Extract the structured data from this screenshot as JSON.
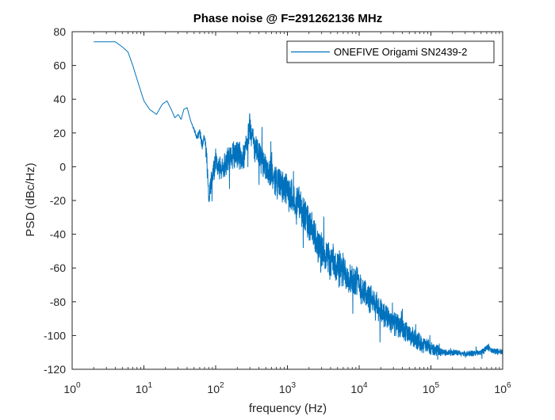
{
  "chart_data": {
    "type": "line",
    "title": "Phase noise @ F=291262136 MHz",
    "xlabel": "frequency (Hz)",
    "ylabel": "PSD (dBc/Hz)",
    "xscale": "log",
    "xlim": [
      1,
      1000000
    ],
    "ylim": [
      -120,
      80
    ],
    "grid": true,
    "minor_grid": true,
    "legend_position": "top-right",
    "x_ticks": [
      {
        "base": "10",
        "exp": "0",
        "value": 1
      },
      {
        "base": "10",
        "exp": "1",
        "value": 10
      },
      {
        "base": "10",
        "exp": "2",
        "value": 100
      },
      {
        "base": "10",
        "exp": "3",
        "value": 1000
      },
      {
        "base": "10",
        "exp": "4",
        "value": 10000
      },
      {
        "base": "10",
        "exp": "5",
        "value": 100000
      },
      {
        "base": "10",
        "exp": "6",
        "value": 1000000
      }
    ],
    "y_ticks": [
      "80",
      "60",
      "40",
      "20",
      "0",
      "-20",
      "-40",
      "-60",
      "-80",
      "-100",
      "-120"
    ],
    "series": [
      {
        "name": "ONEFIVE Origami SN2439-2",
        "color": "#0072BD",
        "envelope": {
          "x": [
            2,
            4,
            5,
            6,
            7,
            8,
            10,
            12,
            15,
            18,
            21,
            24,
            27,
            30,
            33,
            36,
            40,
            45,
            50,
            55,
            60,
            65,
            70,
            75,
            80,
            90,
            100,
            120,
            150,
            200,
            250,
            300,
            350,
            400,
            500,
            700,
            1000,
            1500,
            2000,
            3000,
            5000,
            7000,
            10000,
            15000,
            20000,
            30000,
            50000,
            70000,
            100000,
            150000,
            200000,
            300000,
            500000,
            600000,
            700000,
            1000000
          ],
          "y": [
            74,
            74,
            71,
            68,
            60,
            52,
            39,
            34,
            31,
            37,
            39,
            34,
            29,
            31,
            28,
            34,
            35,
            27,
            22,
            17,
            20,
            13,
            18,
            6,
            -18,
            -5,
            3,
            -3,
            5,
            8,
            5,
            24,
            11,
            6,
            0,
            -8,
            -15,
            -22,
            -35,
            -50,
            -60,
            -64,
            -70,
            -80,
            -85,
            -92,
            -100,
            -104,
            -108,
            -110,
            -110,
            -111,
            -110,
            -107,
            -109,
            -110
          ],
          "noise_amp": [
            0,
            0,
            0,
            0,
            0,
            0,
            0,
            0,
            0,
            0,
            0,
            0,
            0,
            0,
            0,
            0,
            0,
            0,
            1,
            2,
            3,
            4,
            4,
            6,
            6,
            8,
            8,
            8,
            9,
            9,
            9,
            9,
            10,
            10,
            10,
            11,
            11,
            12,
            12,
            12,
            13,
            12,
            11,
            10,
            9,
            8,
            7,
            6,
            5,
            2,
            2,
            2,
            2,
            2,
            2,
            2
          ]
        }
      }
    ]
  }
}
